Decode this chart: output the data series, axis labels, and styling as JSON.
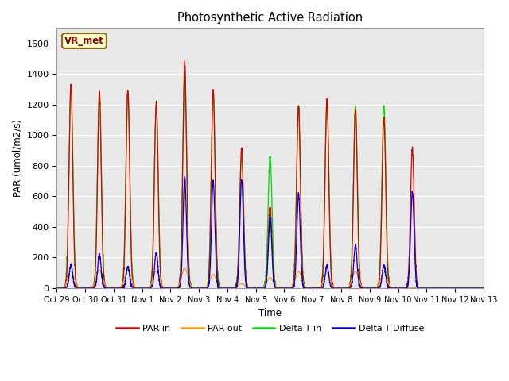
{
  "title": "Photosynthetic Active Radiation",
  "ylabel": "PAR (umol/m2/s)",
  "xlabel": "Time",
  "annotation": "VR_met",
  "ylim": [
    0,
    1700
  ],
  "yticks": [
    0,
    200,
    400,
    600,
    800,
    1000,
    1200,
    1400,
    1600
  ],
  "xtick_labels": [
    "Oct 29",
    "Oct 30",
    "Oct 31",
    "Nov 1",
    "Nov 2",
    "Nov 3",
    "Nov 4",
    "Nov 5",
    "Nov 6",
    "Nov 7",
    "Nov 8",
    "Nov 9",
    "Nov 10",
    "Nov 11",
    "Nov 12",
    "Nov 13"
  ],
  "legend_labels": [
    "PAR in",
    "PAR out",
    "Delta-T in",
    "Delta-T Diffuse"
  ],
  "legend_colors": [
    "#dd0000",
    "#ff9900",
    "#00dd00",
    "#0000dd"
  ],
  "bg_color": "#e8e8e8",
  "line_colors": {
    "PAR_in": "#dd0000",
    "PAR_out": "#ff9900",
    "Delta_T_in": "#00dd00",
    "Delta_T_Diffuse": "#0000dd"
  },
  "par_in_peaks": [
    1330,
    1270,
    1290,
    1210,
    1460,
    1290,
    910,
    530,
    1190,
    1230,
    1170,
    1110,
    910,
    0,
    0
  ],
  "par_out_peaks": [
    110,
    120,
    120,
    110,
    130,
    90,
    30,
    70,
    110,
    100,
    110,
    100,
    0,
    0,
    0
  ],
  "delta_t_in_peaks": [
    1325,
    1265,
    1285,
    1200,
    1450,
    1280,
    860,
    860,
    1185,
    1210,
    1190,
    1195,
    0,
    0,
    0
  ],
  "delta_t_diff_peaks": [
    150,
    220,
    140,
    230,
    730,
    700,
    710,
    460,
    610,
    150,
    280,
    150,
    630,
    0,
    0
  ],
  "n_days": 15,
  "pts_per_day": 288
}
